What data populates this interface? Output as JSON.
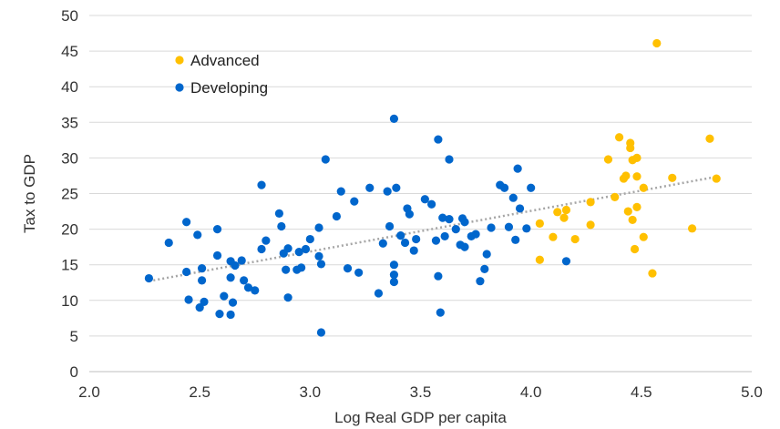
{
  "chart_data": {
    "type": "scatter",
    "xlabel": "Log Real GDP per capita",
    "ylabel": "Tax to GDP",
    "xlim": [
      2.0,
      5.0
    ],
    "ylim": [
      0,
      50
    ],
    "xticks": [
      "2.0",
      "2.5",
      "3.0",
      "3.5",
      "4.0",
      "4.5",
      "5.0"
    ],
    "yticks": [
      "0",
      "5",
      "10",
      "15",
      "20",
      "25",
      "30",
      "35",
      "40",
      "45",
      "50"
    ],
    "grid": "horizontal",
    "legend_position": "top-left",
    "trendline": {
      "style": "dotted",
      "color": "#a6a6a6",
      "from": [
        2.27,
        12.7
      ],
      "to": [
        4.83,
        27.3
      ]
    },
    "series": [
      {
        "name": "Advanced",
        "color": "#ffc000",
        "points": [
          [
            4.57,
            46.1
          ],
          [
            4.4,
            32.9
          ],
          [
            4.45,
            32.1
          ],
          [
            4.45,
            31.4
          ],
          [
            4.81,
            32.7
          ],
          [
            4.35,
            29.8
          ],
          [
            4.46,
            29.7
          ],
          [
            4.48,
            30.0
          ],
          [
            4.42,
            27.1
          ],
          [
            4.43,
            27.5
          ],
          [
            4.48,
            27.4
          ],
          [
            4.64,
            27.2
          ],
          [
            4.84,
            27.1
          ],
          [
            4.51,
            25.8
          ],
          [
            4.38,
            24.5
          ],
          [
            4.27,
            23.8
          ],
          [
            4.16,
            22.7
          ],
          [
            4.12,
            22.4
          ],
          [
            4.15,
            21.6
          ],
          [
            4.44,
            22.5
          ],
          [
            4.48,
            23.1
          ],
          [
            4.46,
            21.3
          ],
          [
            4.27,
            20.6
          ],
          [
            4.04,
            20.8
          ],
          [
            4.1,
            18.9
          ],
          [
            4.2,
            18.6
          ],
          [
            4.51,
            18.9
          ],
          [
            4.73,
            20.1
          ],
          [
            4.04,
            15.7
          ],
          [
            4.47,
            17.2
          ],
          [
            4.55,
            13.8
          ]
        ]
      },
      {
        "name": "Developing",
        "color": "#0066cc",
        "points": [
          [
            2.27,
            13.1
          ],
          [
            2.36,
            18.1
          ],
          [
            2.44,
            21.0
          ],
          [
            2.44,
            14.0
          ],
          [
            2.45,
            10.1
          ],
          [
            2.49,
            19.2
          ],
          [
            2.5,
            9.0
          ],
          [
            2.51,
            14.5
          ],
          [
            2.51,
            12.8
          ],
          [
            2.52,
            9.8
          ],
          [
            2.58,
            20.0
          ],
          [
            2.58,
            16.3
          ],
          [
            2.59,
            8.1
          ],
          [
            2.61,
            10.6
          ],
          [
            2.64,
            15.5
          ],
          [
            2.64,
            13.2
          ],
          [
            2.64,
            8.0
          ],
          [
            2.65,
            9.7
          ],
          [
            2.66,
            14.9
          ],
          [
            2.69,
            15.6
          ],
          [
            2.7,
            12.8
          ],
          [
            2.72,
            11.8
          ],
          [
            2.75,
            11.4
          ],
          [
            2.78,
            17.2
          ],
          [
            2.78,
            26.2
          ],
          [
            2.8,
            18.4
          ],
          [
            2.86,
            22.2
          ],
          [
            2.87,
            20.4
          ],
          [
            2.88,
            16.6
          ],
          [
            2.89,
            14.3
          ],
          [
            2.9,
            17.3
          ],
          [
            2.9,
            10.4
          ],
          [
            2.94,
            14.3
          ],
          [
            2.95,
            16.8
          ],
          [
            2.96,
            14.6
          ],
          [
            2.98,
            17.2
          ],
          [
            3.0,
            18.6
          ],
          [
            3.04,
            20.2
          ],
          [
            3.04,
            16.2
          ],
          [
            3.05,
            15.1
          ],
          [
            3.05,
            5.5
          ],
          [
            3.07,
            29.8
          ],
          [
            3.12,
            21.8
          ],
          [
            3.14,
            25.3
          ],
          [
            3.17,
            14.5
          ],
          [
            3.2,
            23.9
          ],
          [
            3.22,
            13.9
          ],
          [
            3.27,
            25.8
          ],
          [
            3.31,
            11.0
          ],
          [
            3.33,
            18.0
          ],
          [
            3.35,
            25.3
          ],
          [
            3.36,
            20.4
          ],
          [
            3.38,
            35.5
          ],
          [
            3.38,
            15.0
          ],
          [
            3.38,
            13.6
          ],
          [
            3.38,
            12.6
          ],
          [
            3.39,
            25.8
          ],
          [
            3.41,
            19.1
          ],
          [
            3.43,
            18.1
          ],
          [
            3.44,
            22.9
          ],
          [
            3.45,
            22.1
          ],
          [
            3.47,
            17.0
          ],
          [
            3.48,
            18.6
          ],
          [
            3.52,
            24.2
          ],
          [
            3.55,
            23.5
          ],
          [
            3.57,
            18.4
          ],
          [
            3.58,
            32.6
          ],
          [
            3.58,
            13.4
          ],
          [
            3.59,
            8.3
          ],
          [
            3.6,
            21.6
          ],
          [
            3.61,
            19.0
          ],
          [
            3.63,
            29.8
          ],
          [
            3.63,
            21.4
          ],
          [
            3.66,
            20.0
          ],
          [
            3.68,
            17.8
          ],
          [
            3.69,
            21.5
          ],
          [
            3.7,
            17.5
          ],
          [
            3.7,
            21.0
          ],
          [
            3.73,
            19.0
          ],
          [
            3.75,
            19.3
          ],
          [
            3.77,
            12.7
          ],
          [
            3.79,
            14.4
          ],
          [
            3.8,
            16.5
          ],
          [
            3.82,
            20.2
          ],
          [
            3.86,
            26.2
          ],
          [
            3.88,
            25.8
          ],
          [
            3.9,
            20.3
          ],
          [
            3.92,
            24.4
          ],
          [
            3.93,
            18.5
          ],
          [
            3.94,
            28.5
          ],
          [
            3.95,
            22.9
          ],
          [
            3.98,
            20.1
          ],
          [
            4.0,
            25.8
          ],
          [
            4.16,
            15.5
          ]
        ]
      }
    ]
  }
}
